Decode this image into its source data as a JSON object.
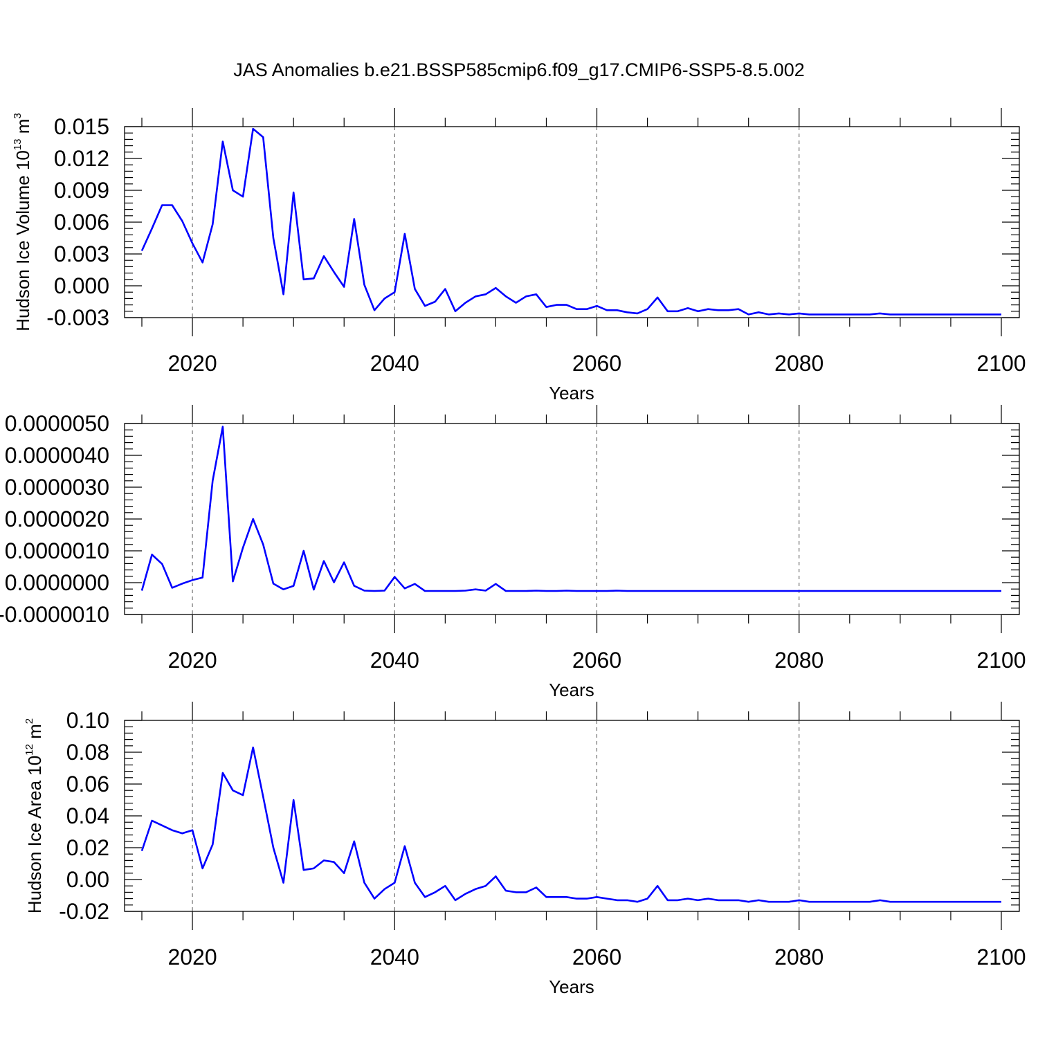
{
  "title": "JAS Anomalies b.e21.BSSP585cmip6.f09_g17.CMIP6-SSP5-8.5.002",
  "chart_data": [
    {
      "type": "line",
      "ylabel_main": "Hudson Ice Volume 10",
      "ylabel_sup": "13",
      "ylabel_unit": " m",
      "ylabel_unit_sup": "3",
      "xlabel": "Years",
      "xlim": [
        2015,
        2100
      ],
      "ylim": [
        -0.003,
        0.015
      ],
      "grid": "vertical dashed lines at x major ticks",
      "x_ticks": [
        2020,
        2040,
        2060,
        2080,
        2100
      ],
      "x_tick_labels": [
        "2020",
        "2040",
        "2060",
        "2080",
        "2100"
      ],
      "y_ticks": [
        -0.003,
        0.0,
        0.003,
        0.006,
        0.009,
        0.012,
        0.015
      ],
      "y_tick_labels": [
        "-0.003",
        "0.000",
        "0.003",
        "0.006",
        "0.009",
        "0.012",
        "0.015"
      ],
      "color": "#0000ff",
      "x": [
        2015,
        2016,
        2017,
        2018,
        2019,
        2020,
        2021,
        2022,
        2023,
        2024,
        2025,
        2026,
        2027,
        2028,
        2029,
        2030,
        2031,
        2032,
        2033,
        2034,
        2035,
        2036,
        2037,
        2038,
        2039,
        2040,
        2041,
        2042,
        2043,
        2044,
        2045,
        2046,
        2047,
        2048,
        2049,
        2050,
        2051,
        2052,
        2053,
        2054,
        2055,
        2056,
        2057,
        2058,
        2059,
        2060,
        2061,
        2062,
        2063,
        2064,
        2065,
        2066,
        2067,
        2068,
        2069,
        2070,
        2071,
        2072,
        2073,
        2074,
        2075,
        2076,
        2077,
        2078,
        2079,
        2080,
        2081,
        2082,
        2083,
        2084,
        2085,
        2086,
        2087,
        2088,
        2089,
        2090,
        2091,
        2092,
        2093,
        2094,
        2095,
        2096,
        2097,
        2098,
        2099,
        2100
      ],
      "y": [
        0.0033,
        0.0054,
        0.0076,
        0.0076,
        0.0061,
        0.004,
        0.0022,
        0.0058,
        0.0136,
        0.009,
        0.0084,
        0.0148,
        0.014,
        0.0045,
        -0.0008,
        0.0088,
        0.0006,
        0.0007,
        0.0028,
        0.0013,
        -0.0001,
        0.0063,
        0.0001,
        -0.0023,
        -0.0012,
        -0.0006,
        0.0049,
        -0.0003,
        -0.0019,
        -0.0015,
        -0.0003,
        -0.0024,
        -0.0016,
        -0.001,
        -0.0008,
        -0.0002,
        -0.001,
        -0.0016,
        -0.001,
        -0.0008,
        -0.002,
        -0.0018,
        -0.0018,
        -0.0022,
        -0.0022,
        -0.0019,
        -0.0023,
        -0.0023,
        -0.0025,
        -0.0026,
        -0.0022,
        -0.0011,
        -0.0024,
        -0.0024,
        -0.0021,
        -0.0024,
        -0.0022,
        -0.0023,
        -0.0023,
        -0.0022,
        -0.0027,
        -0.0025,
        -0.0027,
        -0.0026,
        -0.0027,
        -0.0026,
        -0.0027,
        -0.0027,
        -0.0027,
        -0.0027,
        -0.0027,
        -0.0027,
        -0.0027,
        -0.0026,
        -0.0027,
        -0.0027,
        -0.0027,
        -0.0027,
        -0.0027,
        -0.0027,
        -0.0027,
        -0.0027,
        -0.0027,
        -0.0027,
        -0.0027,
        -0.0027
      ]
    },
    {
      "type": "line",
      "ylabel_main": "",
      "xlabel": "Years",
      "xlim": [
        2015,
        2100
      ],
      "ylim": [
        -1e-06,
        5e-06
      ],
      "grid": "vertical dashed lines at x major ticks",
      "x_ticks": [
        2020,
        2040,
        2060,
        2080,
        2100
      ],
      "x_tick_labels": [
        "2020",
        "2040",
        "2060",
        "2080",
        "2100"
      ],
      "y_ticks": [
        -1e-06,
        0.0,
        1e-06,
        2e-06,
        3e-06,
        4e-06,
        5e-06
      ],
      "y_tick_labels": [
        "-0.0000010",
        "0.0000000",
        "0.0000010",
        "0.0000020",
        "0.0000030",
        "0.0000040",
        "0.0000050"
      ],
      "color": "#0000ff",
      "x": [
        2015,
        2016,
        2017,
        2018,
        2019,
        2020,
        2021,
        2022,
        2023,
        2024,
        2025,
        2026,
        2027,
        2028,
        2029,
        2030,
        2031,
        2032,
        2033,
        2034,
        2035,
        2036,
        2037,
        2038,
        2039,
        2040,
        2041,
        2042,
        2043,
        2044,
        2045,
        2046,
        2047,
        2048,
        2049,
        2050,
        2051,
        2052,
        2053,
        2054,
        2055,
        2056,
        2057,
        2058,
        2059,
        2060,
        2061,
        2062,
        2063,
        2064,
        2065,
        2066,
        2067,
        2068,
        2069,
        2070,
        2071,
        2072,
        2073,
        2074,
        2075,
        2076,
        2077,
        2078,
        2079,
        2080,
        2081,
        2082,
        2083,
        2084,
        2085,
        2086,
        2087,
        2088,
        2089,
        2090,
        2091,
        2092,
        2093,
        2094,
        2095,
        2096,
        2097,
        2098,
        2099,
        2100
      ],
      "y": [
        -2.5e-07,
        8.8e-07,
        5.9e-07,
        -1.6e-07,
        -3e-08,
        8e-08,
        1.6e-07,
        3.2e-06,
        4.9e-06,
        4e-08,
        1.1e-06,
        2e-06,
        1.2e-06,
        -3e-08,
        -2.1e-07,
        -1e-07,
        1e-06,
        -2.2e-07,
        6.8e-07,
        1e-08,
        6.4e-07,
        -1e-07,
        -2.5e-07,
        -2.6e-07,
        -2.5e-07,
        1.8e-07,
        -1.8e-07,
        -4e-08,
        -2.6e-07,
        -2.6e-07,
        -2.6e-07,
        -2.6e-07,
        -2.5e-07,
        -2.1e-07,
        -2.5e-07,
        -4e-08,
        -2.6e-07,
        -2.6e-07,
        -2.6e-07,
        -2.5e-07,
        -2.6e-07,
        -2.6e-07,
        -2.5e-07,
        -2.6e-07,
        -2.6e-07,
        -2.6e-07,
        -2.6e-07,
        -2.5e-07,
        -2.6e-07,
        -2.6e-07,
        -2.6e-07,
        -2.6e-07,
        -2.6e-07,
        -2.6e-07,
        -2.6e-07,
        -2.6e-07,
        -2.6e-07,
        -2.6e-07,
        -2.6e-07,
        -2.6e-07,
        -2.6e-07,
        -2.6e-07,
        -2.6e-07,
        -2.6e-07,
        -2.6e-07,
        -2.6e-07,
        -2.6e-07,
        -2.6e-07,
        -2.6e-07,
        -2.6e-07,
        -2.6e-07,
        -2.6e-07,
        -2.6e-07,
        -2.6e-07,
        -2.6e-07,
        -2.6e-07,
        -2.6e-07,
        -2.6e-07,
        -2.6e-07,
        -2.6e-07,
        -2.6e-07,
        -2.6e-07,
        -2.6e-07,
        -2.6e-07,
        -2.6e-07,
        -2.6e-07
      ]
    },
    {
      "type": "line",
      "ylabel_main": "Hudson Ice Area 10",
      "ylabel_sup": "12",
      "ylabel_unit": " m",
      "ylabel_unit_sup": "2",
      "xlabel": "Years",
      "xlim": [
        2015,
        2100
      ],
      "ylim": [
        -0.02,
        0.1
      ],
      "grid": "vertical dashed lines at x major ticks",
      "x_ticks": [
        2020,
        2040,
        2060,
        2080,
        2100
      ],
      "x_tick_labels": [
        "2020",
        "2040",
        "2060",
        "2080",
        "2100"
      ],
      "y_ticks": [
        -0.02,
        0.0,
        0.02,
        0.04,
        0.06,
        0.08,
        0.1
      ],
      "y_tick_labels": [
        "-0.02",
        "0.00",
        "0.02",
        "0.04",
        "0.06",
        "0.08",
        "0.10"
      ],
      "color": "#0000ff",
      "x": [
        2015,
        2016,
        2017,
        2018,
        2019,
        2020,
        2021,
        2022,
        2023,
        2024,
        2025,
        2026,
        2027,
        2028,
        2029,
        2030,
        2031,
        2032,
        2033,
        2034,
        2035,
        2036,
        2037,
        2038,
        2039,
        2040,
        2041,
        2042,
        2043,
        2044,
        2045,
        2046,
        2047,
        2048,
        2049,
        2050,
        2051,
        2052,
        2053,
        2054,
        2055,
        2056,
        2057,
        2058,
        2059,
        2060,
        2061,
        2062,
        2063,
        2064,
        2065,
        2066,
        2067,
        2068,
        2069,
        2070,
        2071,
        2072,
        2073,
        2074,
        2075,
        2076,
        2077,
        2078,
        2079,
        2080,
        2081,
        2082,
        2083,
        2084,
        2085,
        2086,
        2087,
        2088,
        2089,
        2090,
        2091,
        2092,
        2093,
        2094,
        2095,
        2096,
        2097,
        2098,
        2099,
        2100
      ],
      "y": [
        0.018,
        0.037,
        0.034,
        0.031,
        0.029,
        0.031,
        0.007,
        0.022,
        0.067,
        0.056,
        0.053,
        0.083,
        0.052,
        0.02,
        -0.002,
        0.05,
        0.006,
        0.007,
        0.012,
        0.011,
        0.004,
        0.024,
        -0.002,
        -0.012,
        -0.006,
        -0.002,
        0.021,
        -0.002,
        -0.011,
        -0.008,
        -0.004,
        -0.013,
        -0.009,
        -0.006,
        -0.004,
        0.002,
        -0.007,
        -0.008,
        -0.008,
        -0.005,
        -0.011,
        -0.011,
        -0.011,
        -0.012,
        -0.012,
        -0.011,
        -0.012,
        -0.013,
        -0.013,
        -0.014,
        -0.012,
        -0.004,
        -0.013,
        -0.013,
        -0.012,
        -0.013,
        -0.012,
        -0.013,
        -0.013,
        -0.013,
        -0.014,
        -0.013,
        -0.014,
        -0.014,
        -0.014,
        -0.013,
        -0.014,
        -0.014,
        -0.014,
        -0.014,
        -0.014,
        -0.014,
        -0.014,
        -0.013,
        -0.014,
        -0.014,
        -0.014,
        -0.014,
        -0.014,
        -0.014,
        -0.014,
        -0.014,
        -0.014,
        -0.014,
        -0.014,
        -0.014
      ]
    }
  ]
}
